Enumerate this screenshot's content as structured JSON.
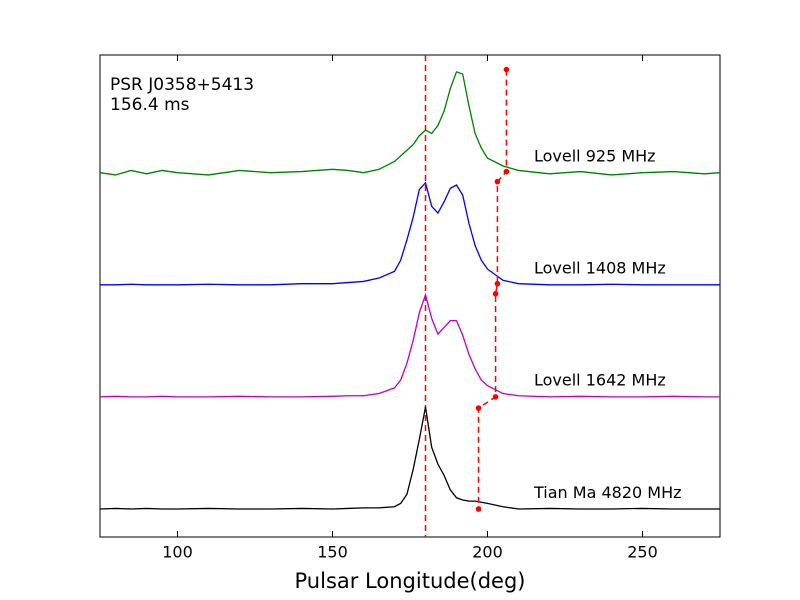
{
  "chart_data": {
    "type": "line",
    "annotations": [
      "PSR J0358+5413",
      "156.4 ms"
    ],
    "xlabel": "Pulsar Longitude(deg)",
    "x": [
      75,
      80,
      85,
      90,
      95,
      100,
      110,
      120,
      130,
      140,
      150,
      155,
      160,
      165,
      170,
      172,
      174,
      176,
      178,
      180,
      182,
      184,
      186,
      188,
      190,
      192,
      194,
      196,
      198,
      200,
      205,
      210,
      220,
      230,
      240,
      250,
      260,
      270,
      275
    ],
    "series": [
      {
        "name": "Lovell 925 MHz",
        "color": "#008000",
        "values": [
          3.0,
          2.98,
          3.02,
          2.99,
          3.02,
          3.0,
          2.98,
          3.02,
          3.0,
          3.01,
          3.03,
          3.02,
          3.0,
          3.03,
          3.1,
          3.15,
          3.2,
          3.25,
          3.33,
          3.38,
          3.35,
          3.42,
          3.55,
          3.75,
          3.9,
          3.88,
          3.6,
          3.35,
          3.22,
          3.13,
          3.06,
          3.02,
          2.99,
          3.01,
          2.98,
          3.0,
          3.01,
          2.99,
          3.0
        ]
      },
      {
        "name": "Lovell 1408 MHz",
        "color": "#0000ff",
        "values": [
          2.0,
          2.0,
          2.005,
          2.0,
          2.0,
          2.0,
          2.005,
          2.0,
          2.0,
          2.01,
          2.01,
          2.02,
          2.03,
          2.06,
          2.12,
          2.22,
          2.4,
          2.6,
          2.85,
          2.91,
          2.7,
          2.64,
          2.74,
          2.86,
          2.89,
          2.8,
          2.55,
          2.35,
          2.22,
          2.14,
          2.04,
          2.01,
          2.0,
          2.0,
          2.005,
          2.0,
          2.0,
          2.0,
          2.0
        ]
      },
      {
        "name": "Lovell 1642 MHz",
        "color": "#bf00bf",
        "values": [
          1.0,
          1.005,
          1.0,
          1.0,
          1.005,
          1.0,
          1.0,
          1.005,
          1.0,
          1.0,
          1.005,
          1.01,
          1.01,
          1.03,
          1.08,
          1.15,
          1.3,
          1.5,
          1.75,
          1.91,
          1.7,
          1.56,
          1.62,
          1.68,
          1.68,
          1.55,
          1.38,
          1.25,
          1.15,
          1.1,
          1.03,
          1.01,
          1.0,
          1.005,
          1.0,
          1.0,
          1.005,
          1.0,
          1.0
        ]
      },
      {
        "name": "Tian Ma 4820 MHz",
        "color": "#000000",
        "values": [
          0,
          0.005,
          0,
          0.005,
          0,
          0,
          0.005,
          0,
          0,
          0.005,
          0,
          0.005,
          0.01,
          0.01,
          0.02,
          0.05,
          0.13,
          0.35,
          0.62,
          0.91,
          0.55,
          0.4,
          0.3,
          0.17,
          0.1,
          0.08,
          0.07,
          0.07,
          0.06,
          0.05,
          0.02,
          0,
          0.005,
          0,
          0,
          0.005,
          0,
          0,
          0
        ]
      }
    ],
    "reference_line": {
      "x": 180,
      "color": "#ff0000"
    },
    "markers": {
      "color": "#ff0000",
      "x": [
        206.1,
        206.1,
        203.2,
        203.2,
        202.6,
        202.6,
        197.1,
        197.1
      ],
      "y": [
        3.92,
        3.01,
        2.92,
        2.01,
        1.92,
        1.0,
        0.9,
        0
      ]
    },
    "xlim": [
      75,
      275
    ],
    "xticks": [
      100,
      150,
      200,
      250
    ],
    "ylim": [
      -0.25,
      4.05
    ]
  }
}
